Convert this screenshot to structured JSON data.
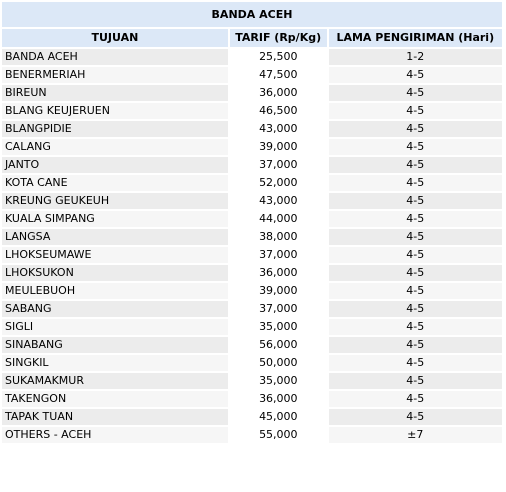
{
  "region": "BANDA ACEH",
  "headers": {
    "destination": "TUJUAN",
    "tariff": "TARIF (Rp/Kg)",
    "duration": "LAMA PENGIRIMAN (Hari)"
  },
  "rows": [
    {
      "destination": "BANDA ACEH",
      "tariff": "25,500",
      "duration": "1-2"
    },
    {
      "destination": "BENERMERIAH",
      "tariff": "47,500",
      "duration": "4-5"
    },
    {
      "destination": "BIREUN",
      "tariff": "36,000",
      "duration": "4-5"
    },
    {
      "destination": "BLANG KEUJERUEN",
      "tariff": "46,500",
      "duration": "4-5"
    },
    {
      "destination": "BLANGPIDIE",
      "tariff": "43,000",
      "duration": "4-5"
    },
    {
      "destination": "CALANG",
      "tariff": "39,000",
      "duration": "4-5"
    },
    {
      "destination": "JANTO",
      "tariff": "37,000",
      "duration": "4-5"
    },
    {
      "destination": "KOTA CANE",
      "tariff": "52,000",
      "duration": "4-5"
    },
    {
      "destination": "KREUNG GEUKEUH",
      "tariff": "43,000",
      "duration": "4-5"
    },
    {
      "destination": "KUALA SIMPANG",
      "tariff": "44,000",
      "duration": "4-5"
    },
    {
      "destination": "LANGSA",
      "tariff": "38,000",
      "duration": "4-5"
    },
    {
      "destination": "LHOKSEUMAWE",
      "tariff": "37,000",
      "duration": "4-5"
    },
    {
      "destination": "LHOKSUKON",
      "tariff": "36,000",
      "duration": "4-5"
    },
    {
      "destination": "MEULEBUOH",
      "tariff": "39,000",
      "duration": "4-5"
    },
    {
      "destination": "SABANG",
      "tariff": "37,000",
      "duration": "4-5"
    },
    {
      "destination": "SIGLI",
      "tariff": "35,000",
      "duration": "4-5"
    },
    {
      "destination": "SINABANG",
      "tariff": "56,000",
      "duration": "4-5"
    },
    {
      "destination": "SINGKIL",
      "tariff": "50,000",
      "duration": "4-5"
    },
    {
      "destination": "SUKAMAKMUR",
      "tariff": "35,000",
      "duration": "4-5"
    },
    {
      "destination": "TAKENGON",
      "tariff": "36,000",
      "duration": "4-5"
    },
    {
      "destination": "TAPAK TUAN",
      "tariff": "45,000",
      "duration": "4-5"
    },
    {
      "destination": "OTHERS - ACEH",
      "tariff": "55,000",
      "duration": "±7"
    }
  ]
}
